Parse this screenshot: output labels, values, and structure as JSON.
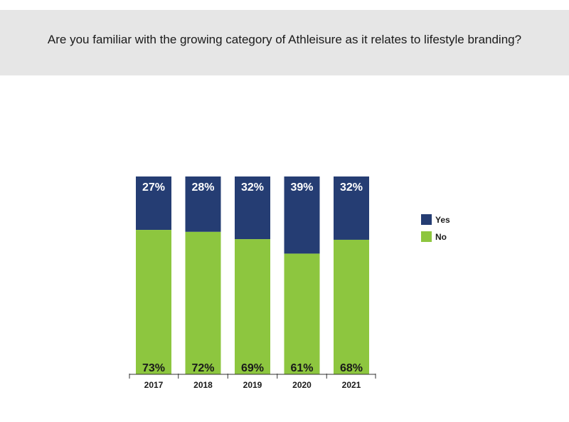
{
  "header": {
    "title": "Are you familiar with the growing category of Athleisure as it relates to lifestyle branding?"
  },
  "colors": {
    "yes": "#253d73",
    "no": "#8dc63f",
    "title_band": "#e6e6e6"
  },
  "chart_data": {
    "type": "bar",
    "stacked": true,
    "categories": [
      "2017",
      "2018",
      "2019",
      "2020",
      "2021"
    ],
    "series": [
      {
        "name": "No",
        "values": [
          73,
          72,
          69,
          61,
          68
        ],
        "labels": [
          "73%",
          "72%",
          "69%",
          "61%",
          "68%"
        ],
        "color": "#8dc63f"
      },
      {
        "name": "Yes",
        "values": [
          27,
          28,
          32,
          39,
          32
        ],
        "labels": [
          "27%",
          "28%",
          "32%",
          "39%",
          "32%"
        ],
        "color": "#253d73"
      }
    ],
    "legend": {
      "position": "right",
      "entries": [
        "Yes",
        "No"
      ]
    },
    "ylim": [
      0,
      100
    ],
    "grid": false
  }
}
